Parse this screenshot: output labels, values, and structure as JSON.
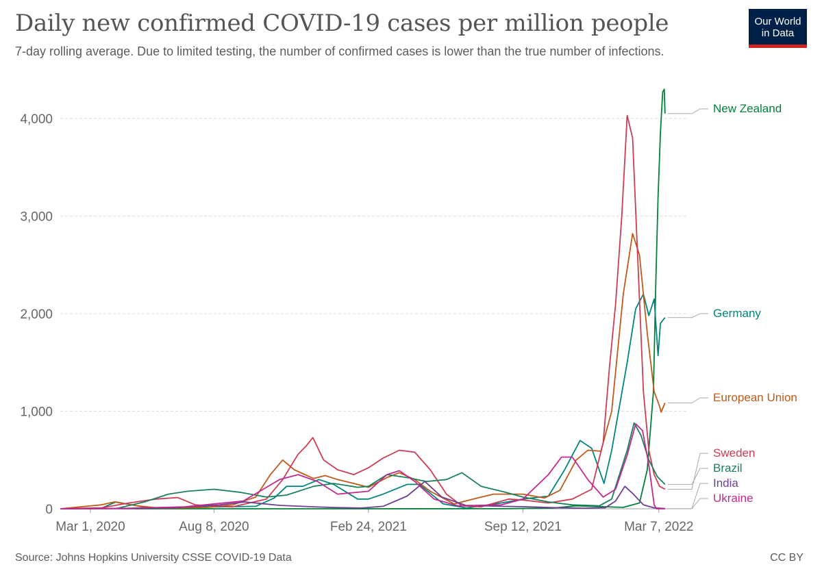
{
  "header": {
    "title": "Daily new confirmed COVID-19 cases per million people",
    "subtitle": "7-day rolling average. Due to limited testing, the number of confirmed cases is lower than the true number of infections.",
    "logo_line1": "Our World",
    "logo_line2": "in Data"
  },
  "footer": {
    "source": "Source: Johns Hopkins University CSSE COVID-19 Data",
    "license": "CC BY"
  },
  "chart_data": {
    "type": "line",
    "title": "Daily new confirmed COVID-19 cases per million people",
    "xlabel": "",
    "ylabel": "",
    "ylim": [
      0,
      4300
    ],
    "xlim": [
      "2020-01-22",
      "2022-04-01"
    ],
    "y_ticks": [
      0,
      1000,
      2000,
      3000,
      4000
    ],
    "y_tick_labels": [
      "0",
      "1,000",
      "2,000",
      "3,000",
      "4,000"
    ],
    "x_ticks": [
      "2020-03-01",
      "2020-08-08",
      "2021-02-24",
      "2021-09-12",
      "2022-03-07"
    ],
    "x_tick_labels": [
      "Mar 1, 2020",
      "Aug 8, 2020",
      "Feb 24, 2021",
      "Sep 12, 2021",
      "Mar 7, 2022"
    ],
    "grid": "horizontal dashed",
    "legend": "right-side line labels",
    "series": [
      {
        "name": "New Zealand",
        "color": "#00813a",
        "label_value": 4050,
        "points": [
          [
            "2020-01-22",
            0
          ],
          [
            "2020-03-20",
            2
          ],
          [
            "2020-04-05",
            3
          ],
          [
            "2020-05-01",
            0
          ],
          [
            "2021-01-01",
            0
          ],
          [
            "2021-08-20",
            1
          ],
          [
            "2021-10-20",
            7
          ],
          [
            "2021-11-20",
            30
          ],
          [
            "2022-01-20",
            15
          ],
          [
            "2022-02-10",
            60
          ],
          [
            "2022-02-20",
            400
          ],
          [
            "2022-02-28",
            1200
          ],
          [
            "2022-03-03",
            2300
          ],
          [
            "2022-03-06",
            3200
          ],
          [
            "2022-03-09",
            3850
          ],
          [
            "2022-03-12",
            4270
          ],
          [
            "2022-03-14",
            4300
          ],
          [
            "2022-03-15",
            4050
          ]
        ]
      },
      {
        "name": "Germany",
        "color": "#00847e",
        "label_value": 1960,
        "points": [
          [
            "2020-01-22",
            0
          ],
          [
            "2020-03-15",
            5
          ],
          [
            "2020-04-03",
            70
          ],
          [
            "2020-05-15",
            10
          ],
          [
            "2020-10-01",
            25
          ],
          [
            "2020-10-25",
            110
          ],
          [
            "2020-11-10",
            230
          ],
          [
            "2020-12-01",
            230
          ],
          [
            "2020-12-22",
            300
          ],
          [
            "2021-01-10",
            250
          ],
          [
            "2021-02-10",
            100
          ],
          [
            "2021-02-24",
            100
          ],
          [
            "2021-03-15",
            150
          ],
          [
            "2021-04-15",
            250
          ],
          [
            "2021-05-01",
            250
          ],
          [
            "2021-06-01",
            50
          ],
          [
            "2021-07-01",
            8
          ],
          [
            "2021-08-15",
            60
          ],
          [
            "2021-09-12",
            100
          ],
          [
            "2021-10-15",
            130
          ],
          [
            "2021-11-05",
            400
          ],
          [
            "2021-11-25",
            700
          ],
          [
            "2021-12-10",
            620
          ],
          [
            "2021-12-26",
            260
          ],
          [
            "2022-01-05",
            600
          ],
          [
            "2022-01-25",
            1500
          ],
          [
            "2022-02-05",
            2050
          ],
          [
            "2022-02-15",
            2200
          ],
          [
            "2022-02-22",
            1980
          ],
          [
            "2022-03-01",
            2150
          ],
          [
            "2022-03-06",
            1570
          ],
          [
            "2022-03-09",
            1900
          ],
          [
            "2022-03-15",
            1960
          ]
        ]
      },
      {
        "name": "European Union",
        "color": "#c05917",
        "label_value": 1085,
        "points": [
          [
            "2020-01-22",
            0
          ],
          [
            "2020-03-15",
            40
          ],
          [
            "2020-04-01",
            70
          ],
          [
            "2020-05-01",
            30
          ],
          [
            "2020-06-01",
            5
          ],
          [
            "2020-08-01",
            15
          ],
          [
            "2020-09-01",
            40
          ],
          [
            "2020-10-01",
            120
          ],
          [
            "2020-10-20",
            350
          ],
          [
            "2020-11-05",
            500
          ],
          [
            "2020-11-20",
            400
          ],
          [
            "2020-12-15",
            310
          ],
          [
            "2020-12-30",
            340
          ],
          [
            "2021-01-15",
            300
          ],
          [
            "2021-02-10",
            250
          ],
          [
            "2021-02-24",
            220
          ],
          [
            "2021-03-20",
            320
          ],
          [
            "2021-04-05",
            370
          ],
          [
            "2021-04-25",
            300
          ],
          [
            "2021-05-15",
            180
          ],
          [
            "2021-06-15",
            50
          ],
          [
            "2021-07-15",
            110
          ],
          [
            "2021-08-05",
            150
          ],
          [
            "2021-09-12",
            150
          ],
          [
            "2021-10-10",
            110
          ],
          [
            "2021-10-30",
            190
          ],
          [
            "2021-11-20",
            500
          ],
          [
            "2021-12-05",
            600
          ],
          [
            "2021-12-22",
            590
          ],
          [
            "2022-01-05",
            1000
          ],
          [
            "2022-01-20",
            2200
          ],
          [
            "2022-02-01",
            2820
          ],
          [
            "2022-02-10",
            2600
          ],
          [
            "2022-02-20",
            1800
          ],
          [
            "2022-03-01",
            1200
          ],
          [
            "2022-03-08",
            1050
          ],
          [
            "2022-03-10",
            990
          ],
          [
            "2022-03-15",
            1085
          ]
        ]
      },
      {
        "name": "Sweden",
        "color": "#cf3a53",
        "label_value": 200,
        "points": [
          [
            "2020-01-22",
            0
          ],
          [
            "2020-03-15",
            10
          ],
          [
            "2020-04-20",
            60
          ],
          [
            "2020-05-25",
            100
          ],
          [
            "2020-06-22",
            115
          ],
          [
            "2020-07-15",
            40
          ],
          [
            "2020-09-01",
            20
          ],
          [
            "2020-10-15",
            100
          ],
          [
            "2020-11-05",
            300
          ],
          [
            "2020-11-25",
            560
          ],
          [
            "2020-12-05",
            640
          ],
          [
            "2020-12-14",
            730
          ],
          [
            "2020-12-28",
            500
          ],
          [
            "2021-01-15",
            400
          ],
          [
            "2021-02-05",
            350
          ],
          [
            "2021-02-24",
            420
          ],
          [
            "2021-03-15",
            520
          ],
          [
            "2021-04-05",
            600
          ],
          [
            "2021-04-25",
            580
          ],
          [
            "2021-05-15",
            400
          ],
          [
            "2021-06-05",
            150
          ],
          [
            "2021-06-25",
            30
          ],
          [
            "2021-07-20",
            20
          ],
          [
            "2021-08-25",
            100
          ],
          [
            "2021-09-12",
            90
          ],
          [
            "2021-10-15",
            60
          ],
          [
            "2021-11-15",
            100
          ],
          [
            "2021-12-10",
            200
          ],
          [
            "2021-12-25",
            680
          ],
          [
            "2022-01-02",
            1450
          ],
          [
            "2022-01-10",
            2100
          ],
          [
            "2022-01-18",
            3000
          ],
          [
            "2022-01-25",
            4030
          ],
          [
            "2022-02-01",
            3800
          ],
          [
            "2022-02-08",
            2500
          ],
          [
            "2022-02-15",
            1200
          ],
          [
            "2022-02-22",
            600
          ],
          [
            "2022-03-01",
            350
          ],
          [
            "2022-03-08",
            230
          ],
          [
            "2022-03-15",
            200
          ]
        ]
      },
      {
        "name": "Brazil",
        "color": "#18805a",
        "label_value": 250,
        "points": [
          [
            "2020-01-22",
            0
          ],
          [
            "2020-04-05",
            5
          ],
          [
            "2020-05-10",
            70
          ],
          [
            "2020-06-10",
            150
          ],
          [
            "2020-07-05",
            180
          ],
          [
            "2020-08-08",
            200
          ],
          [
            "2020-09-10",
            170
          ],
          [
            "2020-10-15",
            120
          ],
          [
            "2020-11-10",
            140
          ],
          [
            "2020-12-15",
            230
          ],
          [
            "2021-01-10",
            260
          ],
          [
            "2021-02-10",
            220
          ],
          [
            "2021-02-24",
            230
          ],
          [
            "2021-03-20",
            350
          ],
          [
            "2021-04-15",
            320
          ],
          [
            "2021-05-10",
            280
          ],
          [
            "2021-06-05",
            300
          ],
          [
            "2021-06-25",
            370
          ],
          [
            "2021-07-20",
            230
          ],
          [
            "2021-08-20",
            170
          ],
          [
            "2021-09-12",
            120
          ],
          [
            "2021-10-15",
            70
          ],
          [
            "2021-11-15",
            40
          ],
          [
            "2021-12-20",
            30
          ],
          [
            "2022-01-05",
            100
          ],
          [
            "2022-01-25",
            600
          ],
          [
            "2022-02-03",
            880
          ],
          [
            "2022-02-12",
            750
          ],
          [
            "2022-02-22",
            500
          ],
          [
            "2022-03-05",
            330
          ],
          [
            "2022-03-15",
            250
          ]
        ]
      },
      {
        "name": "India",
        "color": "#6d3e91",
        "label_value": 2,
        "points": [
          [
            "2020-01-22",
            0
          ],
          [
            "2020-04-15",
            1
          ],
          [
            "2020-06-15",
            10
          ],
          [
            "2020-08-15",
            40
          ],
          [
            "2020-09-17",
            70
          ],
          [
            "2020-11-01",
            35
          ],
          [
            "2020-12-15",
            20
          ],
          [
            "2021-01-15",
            12
          ],
          [
            "2021-02-15",
            8
          ],
          [
            "2021-03-15",
            25
          ],
          [
            "2021-04-15",
            130
          ],
          [
            "2021-05-08",
            280
          ],
          [
            "2021-05-30",
            120
          ],
          [
            "2021-06-30",
            35
          ],
          [
            "2021-08-15",
            25
          ],
          [
            "2021-09-12",
            22
          ],
          [
            "2021-10-20",
            12
          ],
          [
            "2021-12-01",
            6
          ],
          [
            "2021-12-28",
            12
          ],
          [
            "2022-01-10",
            80
          ],
          [
            "2022-01-22",
            230
          ],
          [
            "2022-02-02",
            150
          ],
          [
            "2022-02-15",
            40
          ],
          [
            "2022-03-01",
            10
          ],
          [
            "2022-03-15",
            2
          ]
        ]
      },
      {
        "name": "Ukraine",
        "color": "#c2298e",
        "label_value": 0,
        "points": [
          [
            "2020-01-22",
            0
          ],
          [
            "2020-04-15",
            5
          ],
          [
            "2020-07-01",
            20
          ],
          [
            "2020-09-15",
            80
          ],
          [
            "2020-11-01",
            300
          ],
          [
            "2020-11-25",
            350
          ],
          [
            "2020-12-20",
            280
          ],
          [
            "2021-01-15",
            150
          ],
          [
            "2021-02-24",
            180
          ],
          [
            "2021-03-20",
            350
          ],
          [
            "2021-04-05",
            390
          ],
          [
            "2021-04-25",
            280
          ],
          [
            "2021-05-20",
            100
          ],
          [
            "2021-06-20",
            30
          ],
          [
            "2021-08-15",
            40
          ],
          [
            "2021-09-12",
            100
          ],
          [
            "2021-10-15",
            350
          ],
          [
            "2021-11-01",
            530
          ],
          [
            "2021-11-15",
            530
          ],
          [
            "2021-12-05",
            300
          ],
          [
            "2021-12-25",
            120
          ],
          [
            "2022-01-10",
            200
          ],
          [
            "2022-01-25",
            550
          ],
          [
            "2022-02-05",
            870
          ],
          [
            "2022-02-14",
            800
          ],
          [
            "2022-02-22",
            450
          ],
          [
            "2022-03-01",
            40
          ],
          [
            "2022-03-04",
            0
          ],
          [
            "2022-03-15",
            0
          ]
        ]
      }
    ]
  }
}
